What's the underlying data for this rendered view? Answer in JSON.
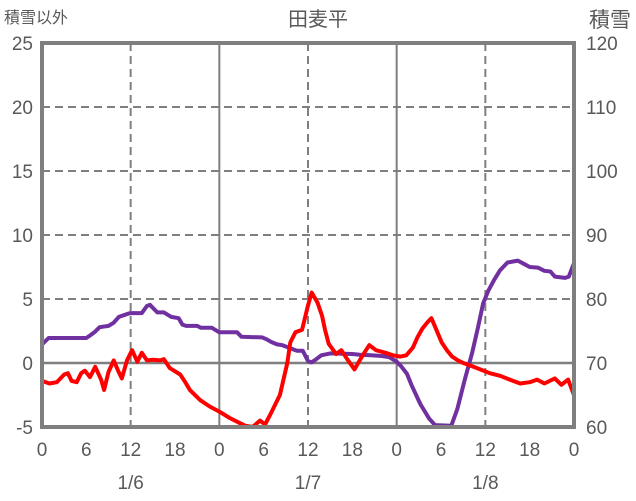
{
  "header": {
    "left_axis_title": "積雪以外",
    "chart_title": "田麦平",
    "right_axis_title": "積雪"
  },
  "colors": {
    "text": "#595959",
    "grid": "#7f7f7f",
    "background": "#ffffff",
    "series_other": "#ff0000",
    "series_snow": "#7030a0"
  },
  "chart_data": {
    "type": "line",
    "title": "田麦平",
    "legend": "none",
    "x_axis": {
      "unit": "hour",
      "min": 0,
      "max": 72,
      "tick_hours": [
        0,
        6,
        12,
        18,
        24,
        30,
        36,
        42,
        48,
        54,
        60,
        66,
        72
      ],
      "tick_labels": [
        "0",
        "6",
        "12",
        "18",
        "0",
        "6",
        "12",
        "18",
        "0",
        "6",
        "12",
        "18",
        "0"
      ],
      "day_labels": [
        {
          "label": "1/6",
          "hour": 12
        },
        {
          "label": "1/7",
          "hour": 36
        },
        {
          "label": "1/8",
          "hour": 60
        }
      ]
    },
    "left_axis": {
      "title": "積雪以外",
      "min": -5,
      "max": 25,
      "tick_step": 5,
      "ticks": [
        25,
        20,
        15,
        10,
        5,
        0,
        -5
      ]
    },
    "right_axis": {
      "title": "積雪",
      "min": 60,
      "max": 120,
      "tick_step": 10,
      "ticks": [
        120,
        110,
        100,
        90,
        80,
        70,
        60
      ]
    },
    "gridlines": {
      "horizontal_dashed_left_values": [
        20,
        15,
        10,
        5
      ],
      "horizontal_solid_left_values": [
        0
      ],
      "vertical_dashed_hours": [
        12,
        36,
        60
      ],
      "vertical_solid_hours": [
        24,
        48
      ]
    },
    "series": [
      {
        "name": "積雪",
        "axis": "right",
        "color": "#7030a0",
        "points": [
          [
            0,
            72.9
          ],
          [
            0.9,
            73.9
          ],
          [
            6,
            73.9
          ],
          [
            6.5,
            74.3
          ],
          [
            7.2,
            74.9
          ],
          [
            7.8,
            75.6
          ],
          [
            9,
            75.8
          ],
          [
            9.7,
            76.3
          ],
          [
            10.4,
            77.2
          ],
          [
            11.9,
            77.8
          ],
          [
            13.5,
            77.8
          ],
          [
            14.2,
            78.9
          ],
          [
            14.6,
            79.1
          ],
          [
            15.6,
            77.9
          ],
          [
            16.5,
            77.9
          ],
          [
            17.5,
            77.2
          ],
          [
            18.5,
            77.0
          ],
          [
            19,
            76.0
          ],
          [
            19.5,
            75.8
          ],
          [
            21,
            75.8
          ],
          [
            21.5,
            75.5
          ],
          [
            23,
            75.5
          ],
          [
            24,
            74.8
          ],
          [
            26.4,
            74.8
          ],
          [
            27,
            74.1
          ],
          [
            29.8,
            74.0
          ],
          [
            30.4,
            73.7
          ],
          [
            31,
            73.3
          ],
          [
            31.8,
            72.9
          ],
          [
            32.5,
            72.8
          ],
          [
            34.5,
            71.9
          ],
          [
            35.3,
            71.9
          ],
          [
            36,
            70.3
          ],
          [
            36.5,
            70.1
          ],
          [
            37,
            70.5
          ],
          [
            37.8,
            71.2
          ],
          [
            39,
            71.5
          ],
          [
            42,
            71.4
          ],
          [
            43,
            71.3
          ],
          [
            44.5,
            71.2
          ],
          [
            46,
            71.1
          ],
          [
            47,
            70.9
          ],
          [
            48,
            70.2
          ],
          [
            48.6,
            69.5
          ],
          [
            49.4,
            68.3
          ],
          [
            50,
            66.6
          ],
          [
            51.2,
            63.6
          ],
          [
            52.4,
            61.3
          ],
          [
            53.2,
            60.3
          ],
          [
            55.4,
            60.2
          ],
          [
            56.2,
            62.8
          ],
          [
            57.2,
            67.3
          ],
          [
            58.2,
            71.5
          ],
          [
            59,
            75.5
          ],
          [
            59.7,
            79.3
          ],
          [
            60.4,
            81.3
          ],
          [
            61.2,
            83.0
          ],
          [
            62,
            84.5
          ],
          [
            63,
            85.7
          ],
          [
            64.4,
            86.0
          ],
          [
            65.2,
            85.5
          ],
          [
            66,
            85.0
          ],
          [
            67.1,
            84.9
          ],
          [
            68,
            84.4
          ],
          [
            68.8,
            84.3
          ],
          [
            69.4,
            83.5
          ],
          [
            70.8,
            83.3
          ],
          [
            71.3,
            83.5
          ],
          [
            72,
            85.6
          ]
        ]
      },
      {
        "name": "積雪以外",
        "axis": "left",
        "color": "#ff0000",
        "points": [
          [
            0,
            -1.4
          ],
          [
            1,
            -1.6
          ],
          [
            2,
            -1.5
          ],
          [
            3,
            -0.9
          ],
          [
            3.5,
            -0.8
          ],
          [
            4,
            -1.4
          ],
          [
            4.7,
            -1.5
          ],
          [
            5.3,
            -0.8
          ],
          [
            5.8,
            -0.6
          ],
          [
            6.5,
            -1.1
          ],
          [
            7.2,
            -0.3
          ],
          [
            8,
            -1.3
          ],
          [
            8.4,
            -2.1
          ],
          [
            9,
            -0.7
          ],
          [
            9.7,
            0.2
          ],
          [
            10.3,
            -0.6
          ],
          [
            10.8,
            -1.2
          ],
          [
            11.5,
            0.2
          ],
          [
            12.2,
            1.0
          ],
          [
            12.9,
            0.1
          ],
          [
            13.5,
            0.8
          ],
          [
            14.2,
            0.2
          ],
          [
            15,
            0.25
          ],
          [
            16,
            0.2
          ],
          [
            16.5,
            0.3
          ],
          [
            17.3,
            -0.4
          ],
          [
            18.7,
            -0.9
          ],
          [
            19.4,
            -1.5
          ],
          [
            20,
            -2.1
          ],
          [
            21.4,
            -2.9
          ],
          [
            22.7,
            -3.4
          ],
          [
            24,
            -3.8
          ],
          [
            25.4,
            -4.3
          ],
          [
            26.8,
            -4.7
          ],
          [
            27.5,
            -4.9
          ],
          [
            28.5,
            -5.0
          ],
          [
            29.5,
            -4.5
          ],
          [
            30.2,
            -4.8
          ],
          [
            31,
            -3.9
          ],
          [
            32.2,
            -2.5
          ],
          [
            33.2,
            0.0
          ],
          [
            33.6,
            1.6
          ],
          [
            34.3,
            2.4
          ],
          [
            35.2,
            2.6
          ],
          [
            36,
            4.5
          ],
          [
            36.5,
            5.5
          ],
          [
            37.3,
            4.7
          ],
          [
            37.9,
            3.7
          ],
          [
            38.3,
            2.6
          ],
          [
            38.8,
            1.5
          ],
          [
            39.8,
            0.7
          ],
          [
            40.5,
            1.0
          ],
          [
            41.3,
            0.3
          ],
          [
            42.3,
            -0.5
          ],
          [
            43.3,
            0.5
          ],
          [
            44.3,
            1.4
          ],
          [
            45.2,
            1.0
          ],
          [
            46.5,
            0.8
          ],
          [
            47.5,
            0.6
          ],
          [
            48.5,
            0.5
          ],
          [
            49.3,
            0.6
          ],
          [
            50.2,
            1.2
          ],
          [
            50.8,
            2.0
          ],
          [
            51.5,
            2.7
          ],
          [
            52.2,
            3.2
          ],
          [
            52.7,
            3.5
          ],
          [
            53.3,
            2.7
          ],
          [
            54.1,
            1.6
          ],
          [
            54.8,
            1.0
          ],
          [
            55.5,
            0.5
          ],
          [
            56.3,
            0.2
          ],
          [
            57,
            0.0
          ],
          [
            58,
            -0.2
          ],
          [
            59.3,
            -0.5
          ],
          [
            60.6,
            -0.8
          ],
          [
            62,
            -1.0
          ],
          [
            63.3,
            -1.3
          ],
          [
            64.7,
            -1.6
          ],
          [
            66,
            -1.5
          ],
          [
            67,
            -1.3
          ],
          [
            68,
            -1.6
          ],
          [
            69.4,
            -1.2
          ],
          [
            70.3,
            -1.7
          ],
          [
            71.2,
            -1.3
          ],
          [
            72,
            -2.5
          ]
        ]
      }
    ]
  }
}
